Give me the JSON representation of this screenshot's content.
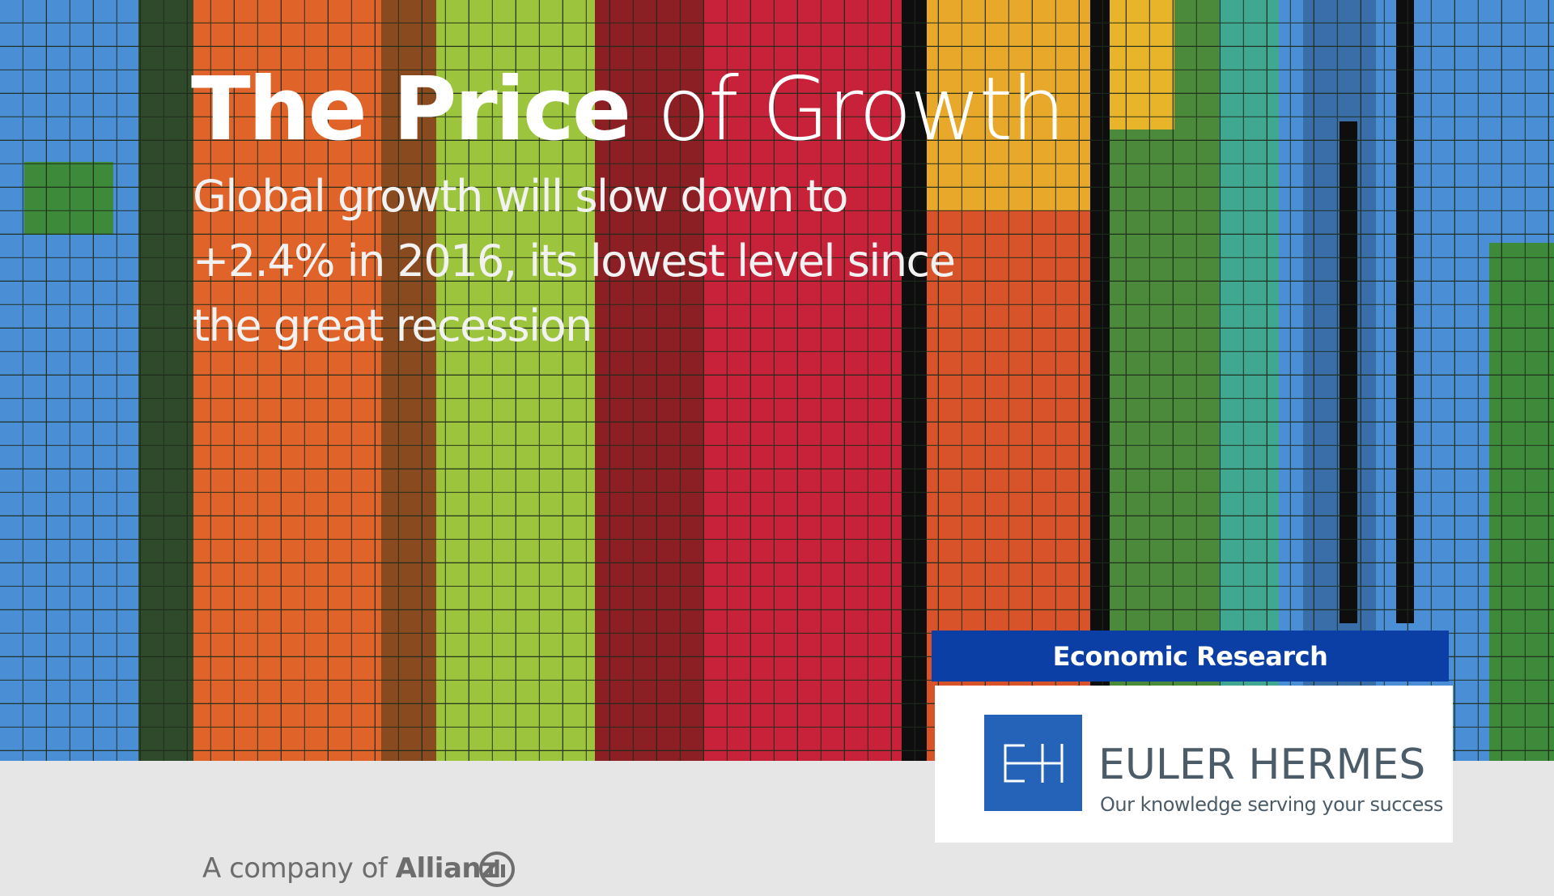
{
  "cover": {
    "title_bold": "The Price",
    "title_light": "of Growth",
    "subtitle_lines": [
      "Global growth will slow down to",
      "+2.4% in 2016, its lowest level since",
      "the great recession"
    ],
    "section": "Economic Research",
    "brand": "EULER HERMES",
    "tagline": "Our knowledge serving your success",
    "company_prefix": "A company of",
    "company": "Allianz"
  }
}
